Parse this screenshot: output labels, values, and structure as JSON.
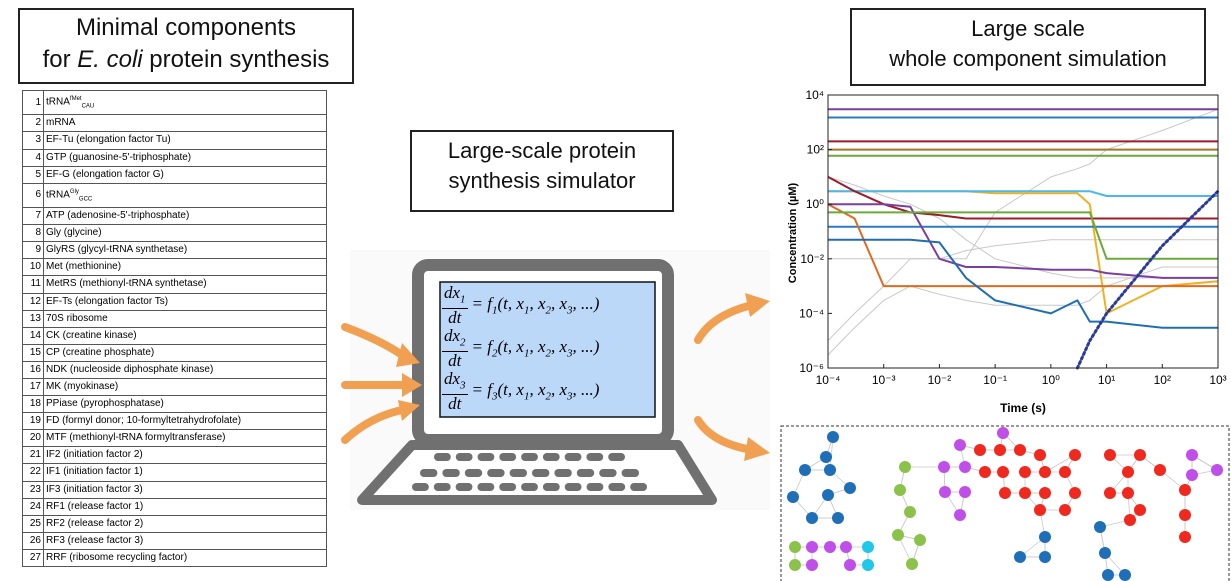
{
  "components_panel": {
    "title_line1": "Minimal components",
    "title_line2": {
      "before": "for ",
      "italic": "E. coli",
      "after": " protein synthesis"
    }
  },
  "table": {
    "rows": [
      {
        "no": 1,
        "name": "tRNA",
        "sup": "fMet",
        "sub": "CAU"
      },
      {
        "no": 2,
        "name": "mRNA"
      },
      {
        "no": 3,
        "name": "EF-Tu (elongation factor Tu)"
      },
      {
        "no": 4,
        "name": "GTP (guanosine-5'-triphosphate)"
      },
      {
        "no": 5,
        "name": "EF-G (elongation factor G)"
      },
      {
        "no": 6,
        "name": "tRNA",
        "sup": "Gly",
        "sub": "GCC"
      },
      {
        "no": 7,
        "name": "ATP (adenosine-5'-triphosphate)"
      },
      {
        "no": 8,
        "name": "Gly (glycine)"
      },
      {
        "no": 9,
        "name": "GlyRS (glycyl-tRNA synthetase)"
      },
      {
        "no": 10,
        "name": "Met (methionine)"
      },
      {
        "no": 11,
        "name": "MetRS (methionyl-tRNA synthetase)"
      },
      {
        "no": 12,
        "name": "EF-Ts (elongation factor Ts)"
      },
      {
        "no": 13,
        "name": "70S ribosome"
      },
      {
        "no": 14,
        "name": "CK (creatine kinase)"
      },
      {
        "no": 15,
        "name": "CP (creatine phosphate)"
      },
      {
        "no": 16,
        "name": "NDK (nucleoside diphosphate kinase)"
      },
      {
        "no": 17,
        "name": "MK (myokinase)"
      },
      {
        "no": 18,
        "name": "PPiase (pyrophosphatase)"
      },
      {
        "no": 19,
        "name": "FD (formyl donor; 10-formyltetrahydrofolate)"
      },
      {
        "no": 20,
        "name": "MTF (methionyl-tRNA formyltransferase)"
      },
      {
        "no": 21,
        "name": "IF2 (initiation factor 2)"
      },
      {
        "no": 22,
        "name": "IF1 (initiation factor 1)"
      },
      {
        "no": 23,
        "name": "IF3 (initiation factor 3)"
      },
      {
        "no": 24,
        "name": "RF1 (release factor 1)"
      },
      {
        "no": 25,
        "name": "RF2 (release factor 2)"
      },
      {
        "no": 26,
        "name": "RF3 (release factor 3)"
      },
      {
        "no": 27,
        "name": "RRF (ribosome recycling factor)"
      }
    ]
  },
  "simulator_panel": {
    "title_line1": "Large-scale protein",
    "title_line2": "synthesis simulator",
    "equations": [
      {
        "num": "dx",
        "num_sub": "1",
        "den": "dt",
        "rhs": [
          {
            "text": "= f"
          },
          {
            "sub": "1"
          },
          {
            "text": "(t, x"
          },
          {
            "sub": "1"
          },
          {
            "text": ", x"
          },
          {
            "sub": "2"
          },
          {
            "text": ", x"
          },
          {
            "sub": "3"
          },
          {
            "text": ", ...)"
          }
        ]
      },
      {
        "num": "dx",
        "num_sub": "2",
        "den": "dt",
        "rhs": [
          {
            "text": "= f"
          },
          {
            "sub": "2"
          },
          {
            "text": "(t, x"
          },
          {
            "sub": "1"
          },
          {
            "text": ", x"
          },
          {
            "sub": "2"
          },
          {
            "text": ", x"
          },
          {
            "sub": "3"
          },
          {
            "text": ", ...)"
          }
        ]
      },
      {
        "num": "dx",
        "num_sub": "3",
        "den": "dt",
        "rhs": [
          {
            "text": "= f"
          },
          {
            "sub": "3"
          },
          {
            "text": "(t, x"
          },
          {
            "sub": "1"
          },
          {
            "text": ", x"
          },
          {
            "sub": "2"
          },
          {
            "text": ", x"
          },
          {
            "sub": "3"
          },
          {
            "text": ", ...)"
          }
        ]
      }
    ]
  },
  "simulation_panel": {
    "title_line1": "Large scale",
    "title_line2": "whole component simulation"
  },
  "chart_data": {
    "type": "line",
    "xlabel": "Time (s)",
    "ylabel": "Concentration (µM)",
    "xlog": true,
    "ylog": true,
    "xlim": [
      0.0001,
      1000
    ],
    "ylim": [
      1e-06,
      10000
    ],
    "xticks": [
      {
        "value": 0.0001,
        "label": "10⁻⁴"
      },
      {
        "value": 0.001,
        "label": "10⁻³"
      },
      {
        "value": 0.01,
        "label": "10⁻²"
      },
      {
        "value": 0.1,
        "label": "10⁻¹"
      },
      {
        "value": 1,
        "label": "10⁰"
      },
      {
        "value": 10,
        "label": "10¹"
      },
      {
        "value": 100,
        "label": "10²"
      },
      {
        "value": 1000,
        "label": "10³"
      }
    ],
    "yticks": [
      {
        "value": 1e-06,
        "label": "10⁻⁶"
      },
      {
        "value": 0.0001,
        "label": "10⁻⁴"
      },
      {
        "value": 0.01,
        "label": "10⁻²"
      },
      {
        "value": 1,
        "label": "10⁰"
      },
      {
        "value": 100,
        "label": "10²"
      },
      {
        "value": 10000,
        "label": "10⁴"
      }
    ],
    "x": [
      0.0001,
      0.0003,
      0.001,
      0.003,
      0.01,
      0.03,
      0.1,
      1,
      3,
      5,
      10,
      100,
      1000
    ],
    "series": [
      {
        "color": "#c8c8c8",
        "values": [
          1e-05,
          0.0001,
          0.001,
          0.01,
          0.01,
          0.02,
          0.03,
          0.05,
          0.05,
          0.05,
          0.05,
          0.05,
          0.05
        ]
      },
      {
        "color": "#c8c8c8",
        "values": [
          10,
          5,
          2,
          1,
          0.3,
          0.05,
          0.01,
          0.003,
          0.002,
          0.002,
          0.002,
          0.002,
          0.002
        ]
      },
      {
        "color": "#c8c8c8",
        "values": [
          3e-06,
          3e-05,
          0.0003,
          0.001,
          0.0005,
          0.0003,
          0.0002,
          0.0002,
          0.0002,
          0.0003,
          0.001,
          0.005,
          0.005
        ]
      },
      {
        "color": "#c8c8c8",
        "values": [
          0.01,
          0.01,
          0.01,
          0.01,
          0.01,
          0.01,
          0.5,
          10,
          20,
          30,
          100,
          500,
          3000
        ]
      },
      {
        "color": "#7b3fa0",
        "values": [
          3000,
          3000,
          3000,
          3000,
          3000,
          3000,
          3000,
          3000,
          3000,
          3000,
          3000,
          3000,
          3000
        ]
      },
      {
        "color": "#2b7bc0",
        "values": [
          1500,
          1500,
          1500,
          1500,
          1500,
          1500,
          1500,
          1500,
          1500,
          1500,
          1500,
          1500,
          1500
        ]
      },
      {
        "color": "#9c1c2a",
        "values": [
          200,
          200,
          200,
          200,
          200,
          200,
          200,
          200,
          200,
          200,
          200,
          200,
          200
        ]
      },
      {
        "color": "#a3782a",
        "values": [
          100,
          100,
          100,
          100,
          100,
          100,
          100,
          100,
          100,
          100,
          100,
          100,
          100
        ]
      },
      {
        "color": "#6aaa3a",
        "values": [
          60,
          60,
          60,
          60,
          60,
          60,
          60,
          60,
          60,
          60,
          60,
          60,
          60
        ]
      },
      {
        "color": "#f0b020",
        "values": [
          3,
          3,
          3,
          3,
          3,
          3,
          2.5,
          2.5,
          2.5,
          1,
          0.0001,
          0.001,
          0.0015
        ]
      },
      {
        "color": "#4ab8e8",
        "values": [
          3,
          3,
          3,
          3,
          3,
          3,
          3,
          3,
          3,
          3,
          2,
          2,
          2
        ]
      },
      {
        "color": "#9c1c2a",
        "values": [
          10,
          3,
          1,
          0.5,
          0.4,
          0.3,
          0.3,
          0.3,
          0.3,
          0.3,
          0.3,
          0.3,
          0.3
        ]
      },
      {
        "color": "#2b7bc0",
        "values": [
          0.15,
          0.15,
          0.15,
          0.15,
          0.15,
          0.15,
          0.15,
          0.15,
          0.15,
          0.15,
          0.15,
          0.15,
          0.15
        ]
      },
      {
        "color": "#e06a20",
        "values": [
          1,
          0.3,
          0.001,
          0.001,
          0.001,
          0.001,
          0.001,
          0.001,
          0.001,
          0.001,
          0.001,
          0.001,
          0.001
        ]
      },
      {
        "color": "#7b3fa0",
        "values": [
          1,
          1,
          1,
          0.8,
          0.01,
          0.005,
          0.005,
          0.004,
          0.004,
          0.004,
          0.003,
          0.002,
          0.002
        ]
      },
      {
        "color": "#6aaa3a",
        "values": [
          0.5,
          0.5,
          0.5,
          0.5,
          0.5,
          0.5,
          0.5,
          0.5,
          0.5,
          0.5,
          0.01,
          0.01,
          0.01
        ]
      },
      {
        "color": "#1f6fb0",
        "values": [
          0.05,
          0.05,
          0.05,
          0.05,
          0.04,
          0.002,
          0.0003,
          0.0001,
          0.0003,
          5e-05,
          5e-05,
          3e-05,
          3e-05
        ]
      },
      {
        "color": "#2a3a9a",
        "dash": "dotted",
        "values": [
          null,
          null,
          null,
          null,
          null,
          null,
          null,
          null,
          1e-06,
          1e-05,
          0.0001,
          0.03,
          3
        ]
      }
    ]
  }
}
